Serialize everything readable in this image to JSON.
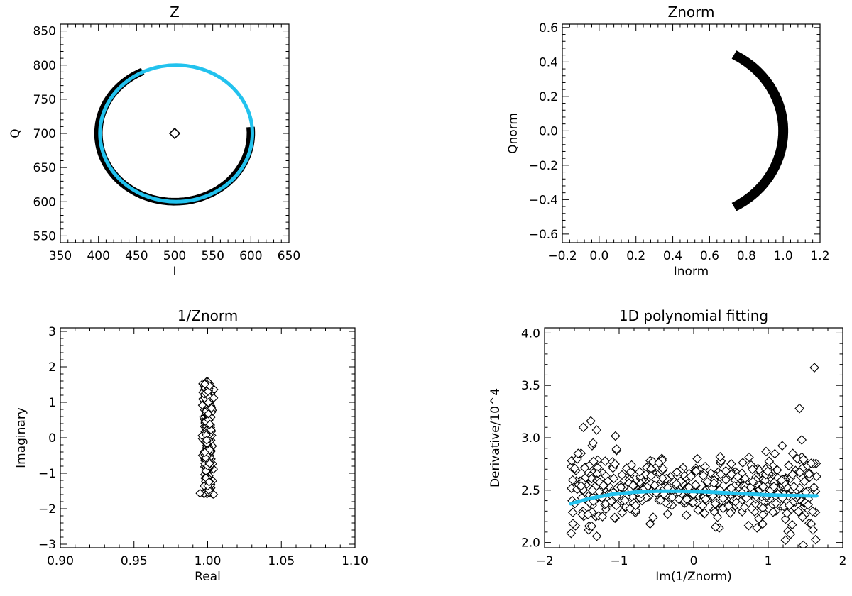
{
  "colors": {
    "axis": "#000000",
    "fit": "#22c2ee",
    "data": "#000000",
    "background": "#ffffff"
  },
  "chart_data": [
    {
      "id": "z",
      "type": "scatter",
      "title": "Z",
      "xlabel": "I",
      "ylabel": "Q",
      "xlim": [
        350,
        650
      ],
      "ylim": [
        540,
        860
      ],
      "xticks": [
        "350",
        "400",
        "450",
        "500",
        "550",
        "600",
        "650"
      ],
      "yticks": [
        "550",
        "600",
        "650",
        "700",
        "750",
        "800",
        "850"
      ],
      "center_marker": {
        "x": 500,
        "y": 700
      },
      "series": [
        {
          "kind": "thick-arc",
          "color": "#000000",
          "cx": 500,
          "cy": 700,
          "r_inner": 95,
          "r_outer": 105,
          "start_deg": 115,
          "end_deg": 365
        },
        {
          "kind": "circle-line",
          "color": "#22c2ee",
          "cx": 502,
          "cy": 700,
          "r": 100
        }
      ]
    },
    {
      "id": "znorm",
      "type": "scatter",
      "title": "Znorm",
      "xlabel": "Inorm",
      "ylabel": "Qnorm",
      "xlim": [
        -0.2,
        1.2
      ],
      "ylim": [
        -0.65,
        0.62
      ],
      "xticks": [
        "−0.2",
        "0.0",
        "0.2",
        "0.4",
        "0.6",
        "0.8",
        "1.0",
        "1.2"
      ],
      "yticks": [
        "−0.6",
        "−0.4",
        "−0.2",
        "0.0",
        "0.2",
        "0.4",
        "0.6"
      ],
      "series": [
        {
          "kind": "thick-arc",
          "color": "#000000",
          "cx": 0.5,
          "cy": 0.0,
          "r_inner": 0.475,
          "r_outer": 0.525,
          "start_deg": -62,
          "end_deg": 62
        }
      ]
    },
    {
      "id": "inv-znorm",
      "type": "scatter",
      "title": "1/Znorm",
      "xlabel": "Real",
      "ylabel": "Imaginary",
      "xlim": [
        0.9,
        1.1
      ],
      "ylim": [
        -3.1,
        3.1
      ],
      "xticks": [
        "0.90",
        "0.95",
        "1.00",
        "1.05",
        "1.10"
      ],
      "yticks": [
        "−3",
        "−2",
        "−1",
        "0",
        "1",
        "2",
        "3"
      ],
      "series": [
        {
          "kind": "diamond-band",
          "color": "#000000",
          "x_center": 1.0,
          "x_spread": 0.0025,
          "y_min": -1.6,
          "y_max": 1.6
        }
      ]
    },
    {
      "id": "poly-fit",
      "type": "scatter",
      "title": "1D polynomial fitting",
      "xlabel": "Im(1/Znorm)",
      "ylabel": "Derivative/10^4",
      "xlim": [
        -2,
        2
      ],
      "ylim": [
        1.95,
        4.05
      ],
      "xticks": [
        "−2",
        "−1",
        "0",
        "1",
        "2"
      ],
      "yticks": [
        "2.0",
        "2.5",
        "3.0",
        "3.5",
        "4.0"
      ],
      "series": [
        {
          "kind": "diamond-cloud",
          "color": "#000000",
          "x_min": -1.65,
          "x_max": 1.65,
          "y_center": 2.5,
          "y_spread": 0.12
        },
        {
          "kind": "outliers",
          "color": "#000000",
          "points": [
            [
              -1.48,
              3.1
            ],
            [
              -1.38,
              3.16
            ],
            [
              -1.35,
              2.95
            ],
            [
              -1.55,
              2.85
            ],
            [
              1.62,
              3.67
            ],
            [
              1.42,
              3.28
            ],
            [
              1.45,
              2.98
            ],
            [
              1.33,
              2.85
            ],
            [
              -1.3,
              2.06
            ],
            [
              1.3,
              2.08
            ],
            [
              -1.62,
              2.18
            ],
            [
              1.6,
              2.12
            ]
          ]
        },
        {
          "kind": "fit-curve",
          "color": "#22c2ee",
          "x": [
            -1.65,
            -1.4,
            -1.1,
            -0.8,
            -0.5,
            -0.2,
            0.1,
            0.4,
            0.7,
            1.0,
            1.3,
            1.65
          ],
          "y": [
            2.37,
            2.42,
            2.46,
            2.48,
            2.49,
            2.49,
            2.485,
            2.475,
            2.465,
            2.455,
            2.448,
            2.445
          ]
        }
      ]
    }
  ]
}
